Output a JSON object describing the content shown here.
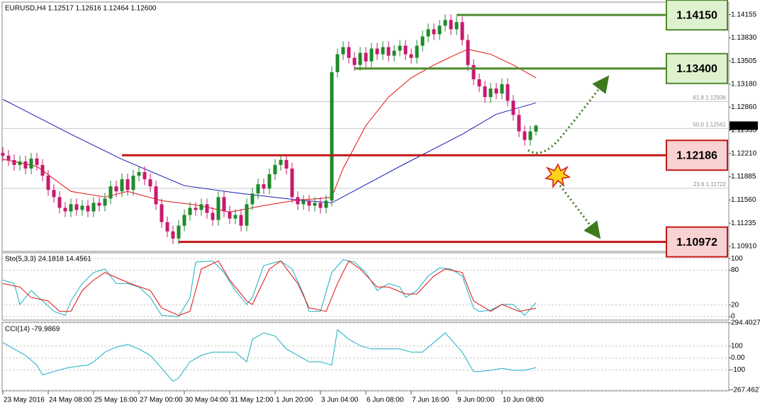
{
  "chart_data": [
    {
      "type": "candlestick",
      "title": "EURUSD,H4  1.12517 1.12616 1.12464 1.12600",
      "open": [
        1.1222,
        1.1218,
        1.1212,
        1.1205,
        1.121,
        1.12,
        1.1214,
        1.1205,
        1.119,
        1.117,
        1.116,
        1.1145,
        1.114,
        1.115,
        1.1142,
        1.1148,
        1.114,
        1.1152,
        1.1148,
        1.1158,
        1.1175,
        1.1168,
        1.1185,
        1.117,
        1.119,
        1.1195,
        1.1185,
        1.1175,
        1.115,
        1.1125,
        1.1112,
        1.1102,
        1.112,
        1.1135,
        1.1145,
        1.1142,
        1.115,
        1.1138,
        1.1128,
        1.116,
        1.114,
        1.113,
        1.1135,
        1.112,
        1.115,
        1.1165,
        1.1178,
        1.1172,
        1.1192,
        1.1205,
        1.1212,
        1.12,
        1.116,
        1.115,
        1.1155,
        1.1148,
        1.1152,
        1.1145,
        1.1155,
        1.1335,
        1.136,
        1.137,
        1.1355,
        1.1345,
        1.1362,
        1.135,
        1.1368,
        1.136,
        1.137,
        1.1358,
        1.1365,
        1.1372,
        1.136,
        1.1355,
        1.1372,
        1.1385,
        1.1395,
        1.1388,
        1.14,
        1.1408,
        1.1395,
        1.1405,
        1.138,
        1.1345,
        1.1325,
        1.1315,
        1.13,
        1.1312,
        1.1305,
        1.1318,
        1.1295,
        1.1275,
        1.1252,
        1.124,
        1.12517
      ],
      "high": [
        1.123,
        1.1226,
        1.122,
        1.1218,
        1.1218,
        1.1222,
        1.1222,
        1.1213,
        1.1198,
        1.1178,
        1.1168,
        1.1153,
        1.1158,
        1.1158,
        1.1156,
        1.1156,
        1.116,
        1.116,
        1.1166,
        1.1183,
        1.1183,
        1.1193,
        1.1193,
        1.1198,
        1.1203,
        1.1203,
        1.1193,
        1.1183,
        1.1158,
        1.1133,
        1.112,
        1.1128,
        1.1143,
        1.1153,
        1.1153,
        1.1158,
        1.1158,
        1.1146,
        1.1168,
        1.1168,
        1.1148,
        1.1143,
        1.1143,
        1.1158,
        1.1173,
        1.1186,
        1.1186,
        1.12,
        1.1213,
        1.122,
        1.122,
        1.1208,
        1.1168,
        1.1163,
        1.1163,
        1.116,
        1.116,
        1.1163,
        1.1343,
        1.1368,
        1.1378,
        1.1378,
        1.1363,
        1.137,
        1.137,
        1.1376,
        1.1376,
        1.1378,
        1.1378,
        1.1373,
        1.138,
        1.138,
        1.1368,
        1.138,
        1.1393,
        1.1403,
        1.1403,
        1.1408,
        1.1416,
        1.1416,
        1.1413,
        1.1413,
        1.1388,
        1.1353,
        1.1333,
        1.1323,
        1.132,
        1.132,
        1.1326,
        1.1326,
        1.1303,
        1.1283,
        1.126,
        1.126,
        1.12616
      ],
      "low": [
        1.121,
        1.1204,
        1.1197,
        1.1197,
        1.1192,
        1.1192,
        1.1197,
        1.1182,
        1.1162,
        1.1152,
        1.1137,
        1.1132,
        1.1132,
        1.1134,
        1.1134,
        1.1132,
        1.1132,
        1.114,
        1.114,
        1.115,
        1.116,
        1.116,
        1.1162,
        1.1162,
        1.1182,
        1.1177,
        1.1167,
        1.1142,
        1.1117,
        1.1104,
        1.1094,
        1.1094,
        1.1112,
        1.1127,
        1.1134,
        1.1134,
        1.113,
        1.112,
        1.112,
        1.1132,
        1.1122,
        1.1122,
        1.1112,
        1.1112,
        1.1142,
        1.1157,
        1.1164,
        1.1164,
        1.1184,
        1.1197,
        1.1192,
        1.1152,
        1.1142,
        1.1142,
        1.114,
        1.114,
        1.1137,
        1.1137,
        1.1147,
        1.1327,
        1.1352,
        1.1347,
        1.1337,
        1.1337,
        1.1342,
        1.1342,
        1.1352,
        1.1352,
        1.135,
        1.135,
        1.1357,
        1.1352,
        1.1347,
        1.1347,
        1.1364,
        1.1377,
        1.138,
        1.138,
        1.1392,
        1.1387,
        1.1387,
        1.1372,
        1.1337,
        1.1317,
        1.1307,
        1.1292,
        1.1292,
        1.1297,
        1.1297,
        1.1287,
        1.1267,
        1.1244,
        1.1232,
        1.1232,
        1.12464
      ],
      "close": [
        1.1218,
        1.1212,
        1.1205,
        1.121,
        1.12,
        1.1214,
        1.1205,
        1.119,
        1.117,
        1.116,
        1.1145,
        1.114,
        1.115,
        1.1142,
        1.1148,
        1.114,
        1.1152,
        1.1148,
        1.1158,
        1.1175,
        1.1168,
        1.1185,
        1.117,
        1.119,
        1.1195,
        1.1185,
        1.1175,
        1.115,
        1.1125,
        1.1112,
        1.1102,
        1.112,
        1.1135,
        1.1145,
        1.1142,
        1.115,
        1.1138,
        1.1128,
        1.116,
        1.114,
        1.113,
        1.1135,
        1.112,
        1.115,
        1.1165,
        1.1178,
        1.1172,
        1.1192,
        1.1205,
        1.1212,
        1.12,
        1.116,
        1.115,
        1.1155,
        1.1148,
        1.1152,
        1.1145,
        1.1155,
        1.1335,
        1.136,
        1.137,
        1.1355,
        1.1345,
        1.1362,
        1.135,
        1.1368,
        1.136,
        1.137,
        1.1358,
        1.1365,
        1.1372,
        1.136,
        1.1355,
        1.1372,
        1.1385,
        1.1395,
        1.1388,
        1.14,
        1.1408,
        1.1395,
        1.1405,
        1.138,
        1.1345,
        1.1325,
        1.1315,
        1.13,
        1.1312,
        1.1305,
        1.1318,
        1.1295,
        1.1275,
        1.1252,
        1.124,
        1.1252,
        1.126
      ],
      "up_color": "#1f8a2a",
      "down_color": "#c8196e",
      "xlim": [
        0,
        128
      ],
      "ylim": [
        1.1084,
        1.1433
      ],
      "grid": false,
      "yticks": [
        1.14155,
        {
          "value": 1.1383,
          "label": "1.13830"
        },
        1.13505,
        {
          "value": 1.1318,
          "label": "1.13180"
        },
        {
          "value": 1.1286,
          "label": "1.12860"
        },
        1.12535,
        {
          "value": 1.1221,
          "label": "1.12210"
        },
        1.11885,
        {
          "value": 1.1156,
          "label": "1.11560"
        },
        1.11235,
        {
          "value": 1.1091,
          "label": "1.10910"
        }
      ],
      "xticks": [
        {
          "value": 0,
          "label": "23 May 2016"
        },
        {
          "value": 8,
          "label": "24 May 08:00"
        },
        {
          "value": 16,
          "label": "25 May 16:00"
        },
        {
          "value": 24,
          "label": "27 May 00:00"
        },
        {
          "value": 32,
          "label": "30 May 04:00"
        },
        {
          "value": 40,
          "label": "31 May 12:00"
        },
        {
          "value": 48,
          "label": "1 Jun 20:00"
        },
        {
          "value": 56,
          "label": "3 Jun 04:00"
        },
        {
          "value": 64,
          "label": "6 Jun 08:00"
        },
        {
          "value": 72,
          "label": "7 Jun 16:00"
        },
        {
          "value": 80,
          "label": "9 Jun 00:00"
        },
        {
          "value": 88,
          "label": "10 Jun 08:00"
        }
      ],
      "lines": [
        {
          "color": "#e01010",
          "x": [
            0,
            6,
            12,
            18,
            22,
            28,
            34,
            40,
            46,
            52,
            56,
            58,
            60,
            64,
            68,
            72,
            76,
            80,
            82,
            86,
            90,
            94
          ],
          "values": [
            1.1213,
            1.1203,
            1.1168,
            1.116,
            1.1168,
            1.1155,
            1.1149,
            1.1139,
            1.1148,
            1.1156,
            1.1158,
            1.116,
            1.12,
            1.126,
            1.13,
            1.1327,
            1.1345,
            1.136,
            1.1367,
            1.136,
            1.1345,
            1.1327
          ]
        },
        {
          "color": "#1a1ab8",
          "x": [
            0,
            12,
            21,
            32,
            41,
            52,
            58,
            70,
            81,
            87,
            94
          ],
          "values": [
            1.1297,
            1.1248,
            1.1213,
            1.1176,
            1.1166,
            1.1156,
            1.1152,
            1.1203,
            1.1248,
            1.1276,
            1.1292
          ]
        }
      ],
      "levels": [
        {
          "value": 1.1415,
          "label": "1.14150",
          "start": 80,
          "color": "#4e8a2e",
          "fill": "#dff2cf"
        },
        {
          "value": 1.134,
          "label": "1.13400",
          "start": 62,
          "color": "#4e8a2e",
          "fill": "#dff2cf"
        },
        {
          "value": 1.12186,
          "label": "1.12186",
          "start": 21,
          "color": "#c01818",
          "fill": "#f9d2d2"
        },
        {
          "value": 1.10972,
          "label": "1.10972",
          "start": 31,
          "color": "#c01818",
          "fill": "#f9d2d2"
        }
      ],
      "fib": [
        {
          "value": 1.12936,
          "label": "61.8 1.12936"
        },
        {
          "value": 1.12561,
          "label": "50.0 1.12561"
        },
        {
          "value": 1.11722,
          "label": "23.6 1.11722"
        }
      ],
      "last_price": {
        "value": 1.126,
        "label": "1.12600"
      }
    },
    {
      "type": "line",
      "title": "Sto(5,3,3) 24.1818 14.4561",
      "xlim": [
        0,
        128
      ],
      "ylim": [
        -6,
        110
      ],
      "yticks": [
        100,
        80,
        20,
        0
      ],
      "grid": true,
      "series": [
        {
          "color": "#1ab0c4",
          "x": [
            0,
            2,
            3,
            5,
            7,
            9,
            11,
            12,
            14,
            16,
            18,
            20,
            22,
            24,
            26,
            28,
            31,
            33,
            34,
            37,
            39,
            41,
            43,
            44,
            46,
            49,
            51,
            53,
            54,
            56,
            58,
            60,
            62,
            64,
            66,
            68,
            70,
            71,
            73,
            75,
            77,
            79,
            81,
            83,
            84,
            86,
            88,
            90,
            92,
            94
          ],
          "values": [
            63,
            57,
            21,
            45,
            27,
            9,
            2,
            27,
            57,
            76,
            82,
            57,
            57,
            51,
            33,
            2,
            0,
            33,
            94,
            96,
            76,
            45,
            21,
            33,
            88,
            96,
            82,
            39,
            9,
            9,
            76,
            98,
            94,
            76,
            45,
            57,
            51,
            33,
            45,
            70,
            84,
            82,
            70,
            15,
            9,
            11,
            21,
            21,
            2,
            24.1818
          ]
        },
        {
          "color": "#e01010",
          "x": [
            0,
            3,
            5,
            8,
            10,
            12,
            14,
            16,
            18,
            21,
            23,
            26,
            28,
            31,
            33,
            35,
            38,
            40,
            43,
            44,
            47,
            49,
            52,
            54,
            57,
            59,
            61,
            63,
            66,
            68,
            71,
            73,
            76,
            78,
            81,
            83,
            86,
            88,
            91,
            94
          ],
          "values": [
            57,
            51,
            33,
            27,
            9,
            9,
            45,
            63,
            76,
            63,
            55,
            45,
            15,
            2,
            9,
            82,
            96,
            63,
            27,
            21,
            82,
            96,
            57,
            15,
            9,
            57,
            96,
            82,
            51,
            51,
            39,
            39,
            70,
            82,
            76,
            27,
            9,
            21,
            9,
            14.4561
          ]
        }
      ]
    },
    {
      "type": "line",
      "title": "CCI(14) -79.9869",
      "xlim": [
        0,
        128
      ],
      "ylim": [
        -275,
        300
      ],
      "yticks": [
        294.4027,
        100,
        {
          "value": 0,
          "label": "0.00"
        },
        -100,
        -267.4627
      ],
      "grid": true,
      "series": [
        {
          "color": "#1ab0c4",
          "x": [
            0,
            2,
            4,
            6,
            7,
            9,
            11,
            13,
            15,
            16,
            18,
            20,
            22,
            24,
            26,
            28,
            30,
            31,
            33,
            35,
            37,
            39,
            41,
            43,
            44,
            46,
            48,
            50,
            52,
            54,
            56,
            58,
            59,
            61,
            63,
            65,
            66,
            68,
            70,
            72,
            74,
            76,
            78,
            79,
            81,
            83,
            84,
            86,
            88,
            90,
            92,
            94
          ],
          "values": [
            130,
            76,
            22,
            -59,
            -141,
            -114,
            -86,
            -70,
            -59,
            -32,
            49,
            92,
            114,
            76,
            22,
            -86,
            -195,
            -168,
            -32,
            22,
            49,
            49,
            49,
            -32,
            157,
            211,
            184,
            76,
            22,
            -32,
            -32,
            -59,
            238,
            157,
            103,
            76,
            76,
            76,
            76,
            49,
            49,
            130,
            211,
            157,
            49,
            -114,
            -114,
            -103,
            -86,
            -103,
            -103,
            -79.9869
          ]
        }
      ]
    }
  ]
}
